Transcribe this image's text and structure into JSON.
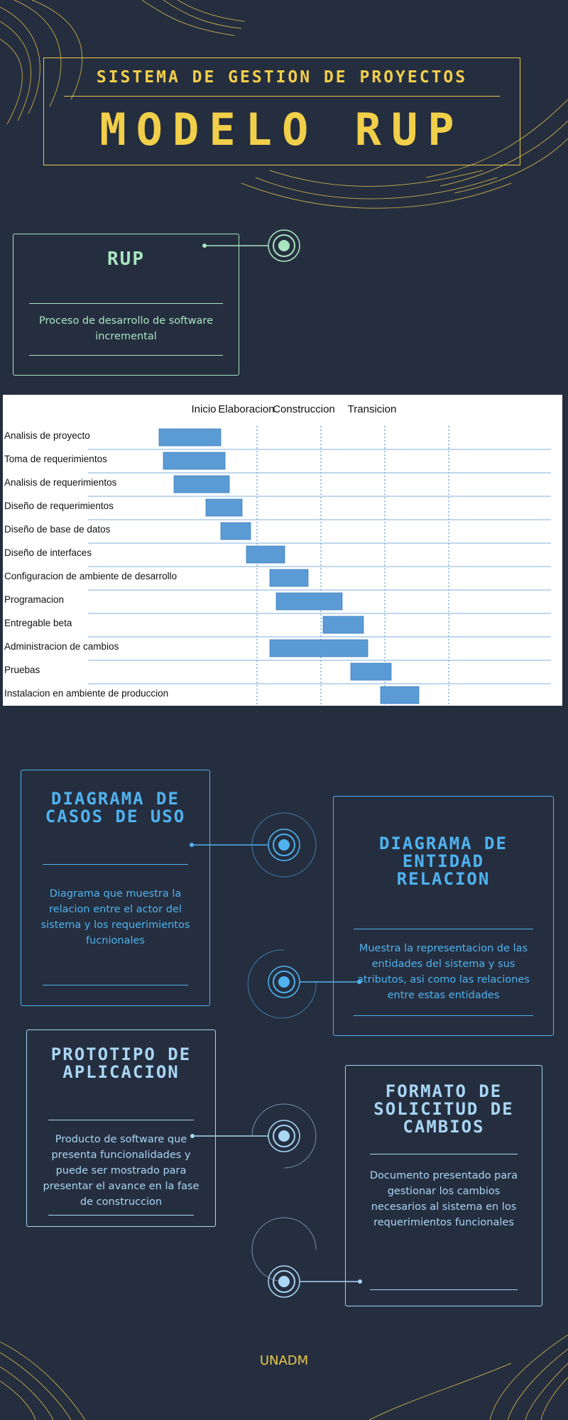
{
  "header": {
    "subtitle": "SISTEMA DE GESTION DE PROYECTOS",
    "title": "MODELO RUP"
  },
  "rup_card": {
    "title": "RUP",
    "description": "Proceso de desarrollo de software incremental"
  },
  "chart_data": {
    "type": "gantt",
    "phases": [
      "Inicio",
      "Elaboracion",
      "Construccion",
      "Transicion"
    ],
    "tasks": [
      {
        "name": "Analisis de proyecto",
        "start": 0.0,
        "end": 1.45
      },
      {
        "name": "Toma de requerimientos",
        "start": 0.1,
        "end": 1.55
      },
      {
        "name": "Analisis de requerimientos",
        "start": 0.35,
        "end": 1.65
      },
      {
        "name": "Diseño de requerimientos",
        "start": 1.1,
        "end": 1.95
      },
      {
        "name": "Diseño de base de datos",
        "start": 1.45,
        "end": 2.15
      },
      {
        "name": "Diseño de interfaces",
        "start": 2.05,
        "end": 2.95
      },
      {
        "name": "Configuracion de ambiente de desarrollo",
        "start": 2.6,
        "end": 3.5
      },
      {
        "name": "Programacion",
        "start": 2.75,
        "end": 4.3
      },
      {
        "name": "Entregable beta",
        "start": 3.85,
        "end": 4.8
      },
      {
        "name": "Administracion de cambios",
        "start": 2.6,
        "end": 4.9
      },
      {
        "name": "Pruebas",
        "start": 4.5,
        "end": 5.45
      },
      {
        "name": "Instalacion en ambiente de produccion",
        "start": 5.2,
        "end": 6.1
      }
    ],
    "bar_color": "#5b9bd5"
  },
  "cards": {
    "casos_uso": {
      "title": "DIAGRAMA DE CASOS DE USO",
      "description": "Diagrama que muestra la relacion entre el actor del sistema y los requerimientos fucnionales"
    },
    "entidad_relacion": {
      "title": "DIAGRAMA DE ENTIDAD RELACION",
      "description": "Muestra la representacion de las entidades del sistema y sus atributos, asi como las relaciones entre estas entidades"
    },
    "prototipo": {
      "title": "PROTOTIPO DE APLICACION",
      "description": "Producto de software que presenta funcionalidades y puede ser mostrado para presentar el avance en la fase de construccion"
    },
    "formato": {
      "title": "FORMATO DE SOLICITUD DE CAMBIOS",
      "description": "Documento presentado para gestionar los cambios necesarios al sistema en los requerimientos funcionales"
    }
  },
  "colors": {
    "background": "#252e3f",
    "gold": "#e8c64a",
    "green": "#a8e6c0",
    "blue": "#4fb3f0",
    "light_blue": "#a9d6f5"
  },
  "footer": {
    "text": "UNADM"
  }
}
